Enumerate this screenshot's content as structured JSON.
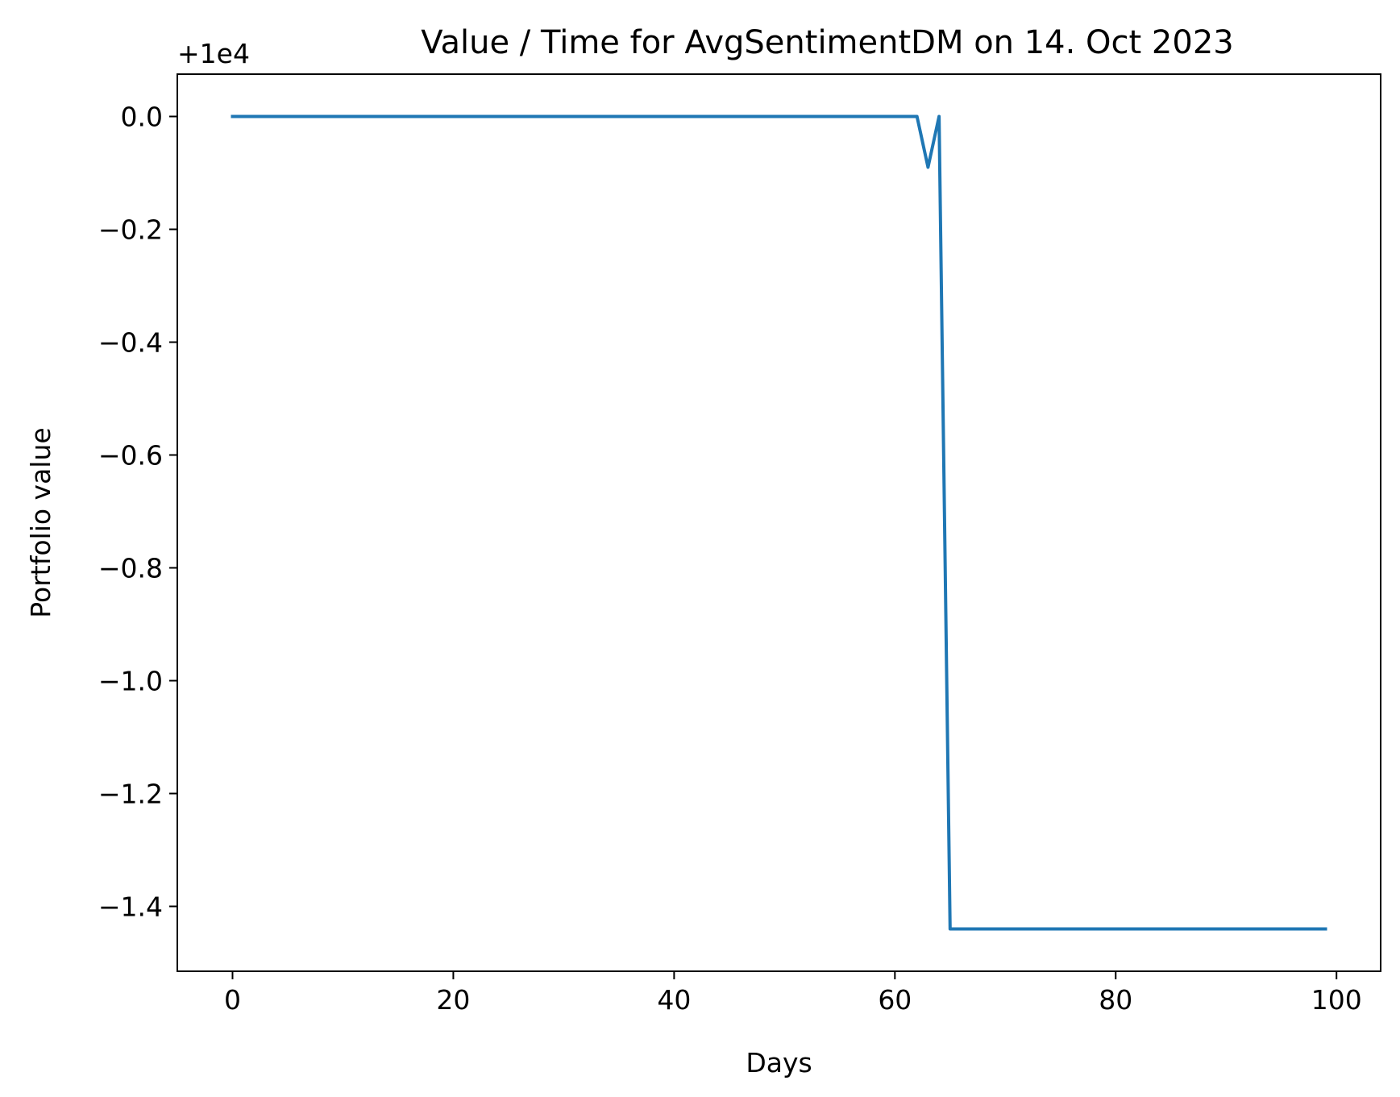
{
  "chart_data": {
    "type": "line",
    "title": "Value / Time for AvgSentimentDM on 14. Oct 2023",
    "xlabel": "Days",
    "ylabel": "Portfolio value",
    "y_offset_label": "+1e4",
    "xlim": [
      -5,
      104
    ],
    "ylim": [
      -1.515,
      0.075
    ],
    "x_ticks": [
      0,
      20,
      40,
      60,
      80,
      100
    ],
    "x_tick_labels": [
      "0",
      "20",
      "40",
      "60",
      "80",
      "100"
    ],
    "y_ticks": [
      0.0,
      -0.2,
      -0.4,
      -0.6,
      -0.8,
      -1.0,
      -1.2,
      -1.4
    ],
    "y_tick_labels": [
      "0.0",
      "−0.2",
      "−0.4",
      "−0.6",
      "−0.8",
      "−1.0",
      "−1.2",
      "−1.4"
    ],
    "grid": false,
    "series": [
      {
        "color": "#1f77b4",
        "x": [
          0,
          62,
          63,
          64,
          65,
          99
        ],
        "y": [
          0.0,
          0.0,
          -0.09,
          0.0,
          -1.44,
          -1.44
        ]
      }
    ]
  }
}
